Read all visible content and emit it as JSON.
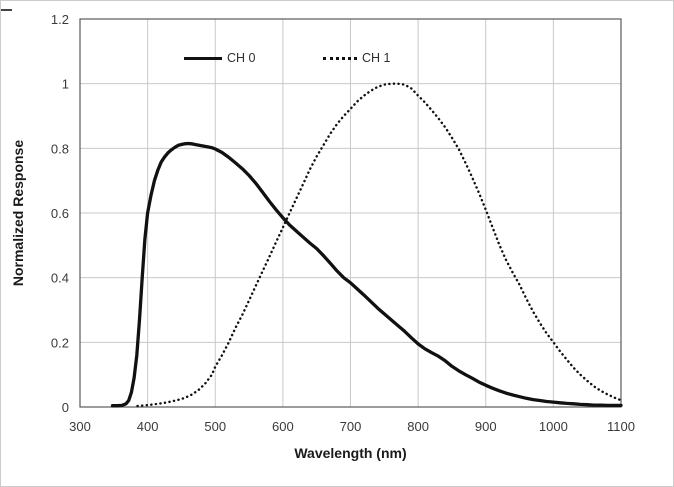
{
  "window": {
    "background": "#ffffff",
    "border_color": "#cccccc"
  },
  "chart_data": {
    "type": "line",
    "title": "",
    "xlabel": "Wavelength (nm)",
    "ylabel": "Normalized Response",
    "xlim": [
      300,
      1100
    ],
    "ylim": [
      0,
      1.2
    ],
    "xticks": [
      300,
      400,
      500,
      600,
      700,
      800,
      900,
      1000,
      1100
    ],
    "xtick_labels": [
      "300",
      "400",
      "500",
      "600",
      "700",
      "800",
      "900",
      "1000",
      "1100"
    ],
    "yticks": [
      0,
      0.2,
      0.4,
      0.6,
      0.8,
      1,
      1.2
    ],
    "ytick_labels": [
      "0",
      "0.2",
      "0.4",
      "0.6",
      "0.8",
      "1",
      "1.2"
    ],
    "grid": true,
    "legend": {
      "position": "top-inside",
      "entries": [
        "CH 0",
        "CH 1"
      ]
    },
    "colors": {
      "grid": "#c9c9c9",
      "frame": "#595959",
      "series": "#111111",
      "tick_text": "#3a3a3a",
      "title_text": "#1a1a1a"
    },
    "series": [
      {
        "name": "CH 0",
        "line_style": "solid",
        "points": [
          [
            348,
            0.004
          ],
          [
            355,
            0.004
          ],
          [
            362,
            0.005
          ],
          [
            368,
            0.01
          ],
          [
            372,
            0.02
          ],
          [
            376,
            0.045
          ],
          [
            380,
            0.09
          ],
          [
            384,
            0.16
          ],
          [
            388,
            0.27
          ],
          [
            392,
            0.4
          ],
          [
            396,
            0.52
          ],
          [
            400,
            0.6
          ],
          [
            405,
            0.655
          ],
          [
            410,
            0.7
          ],
          [
            415,
            0.732
          ],
          [
            420,
            0.757
          ],
          [
            425,
            0.773
          ],
          [
            430,
            0.786
          ],
          [
            435,
            0.795
          ],
          [
            440,
            0.803
          ],
          [
            445,
            0.809
          ],
          [
            450,
            0.812
          ],
          [
            455,
            0.814
          ],
          [
            460,
            0.815
          ],
          [
            465,
            0.814
          ],
          [
            470,
            0.812
          ],
          [
            475,
            0.81
          ],
          [
            480,
            0.808
          ],
          [
            485,
            0.806
          ],
          [
            490,
            0.804
          ],
          [
            495,
            0.802
          ],
          [
            500,
            0.798
          ],
          [
            510,
            0.787
          ],
          [
            520,
            0.772
          ],
          [
            530,
            0.755
          ],
          [
            540,
            0.737
          ],
          [
            550,
            0.716
          ],
          [
            560,
            0.692
          ],
          [
            570,
            0.664
          ],
          [
            580,
            0.636
          ],
          [
            590,
            0.61
          ],
          [
            600,
            0.585
          ],
          [
            610,
            0.563
          ],
          [
            620,
            0.544
          ],
          [
            630,
            0.525
          ],
          [
            640,
            0.507
          ],
          [
            650,
            0.49
          ],
          [
            660,
            0.468
          ],
          [
            670,
            0.445
          ],
          [
            680,
            0.421
          ],
          [
            690,
            0.4
          ],
          [
            700,
            0.384
          ],
          [
            710,
            0.365
          ],
          [
            720,
            0.346
          ],
          [
            730,
            0.326
          ],
          [
            740,
            0.306
          ],
          [
            750,
            0.288
          ],
          [
            760,
            0.27
          ],
          [
            770,
            0.252
          ],
          [
            780,
            0.234
          ],
          [
            790,
            0.214
          ],
          [
            800,
            0.195
          ],
          [
            810,
            0.18
          ],
          [
            820,
            0.168
          ],
          [
            830,
            0.157
          ],
          [
            840,
            0.143
          ],
          [
            850,
            0.126
          ],
          [
            860,
            0.112
          ],
          [
            870,
            0.1
          ],
          [
            880,
            0.089
          ],
          [
            890,
            0.077
          ],
          [
            900,
            0.067
          ],
          [
            910,
            0.058
          ],
          [
            920,
            0.05
          ],
          [
            930,
            0.043
          ],
          [
            940,
            0.037
          ],
          [
            950,
            0.032
          ],
          [
            960,
            0.027
          ],
          [
            970,
            0.023
          ],
          [
            980,
            0.02
          ],
          [
            990,
            0.017
          ],
          [
            1000,
            0.015
          ],
          [
            1010,
            0.013
          ],
          [
            1020,
            0.011
          ],
          [
            1030,
            0.01
          ],
          [
            1040,
            0.008
          ],
          [
            1050,
            0.007
          ],
          [
            1060,
            0.006
          ],
          [
            1070,
            0.006
          ],
          [
            1080,
            0.005
          ],
          [
            1090,
            0.005
          ],
          [
            1100,
            0.005
          ]
        ]
      },
      {
        "name": "CH 1",
        "line_style": "dotted",
        "points": [
          [
            385,
            0.003
          ],
          [
            395,
            0.005
          ],
          [
            405,
            0.007
          ],
          [
            415,
            0.01
          ],
          [
            425,
            0.013
          ],
          [
            435,
            0.017
          ],
          [
            445,
            0.022
          ],
          [
            455,
            0.028
          ],
          [
            465,
            0.038
          ],
          [
            475,
            0.052
          ],
          [
            485,
            0.072
          ],
          [
            495,
            0.1
          ],
          [
            500,
            0.125
          ],
          [
            510,
            0.16
          ],
          [
            520,
            0.2
          ],
          [
            530,
            0.245
          ],
          [
            540,
            0.285
          ],
          [
            550,
            0.33
          ],
          [
            560,
            0.375
          ],
          [
            570,
            0.42
          ],
          [
            580,
            0.465
          ],
          [
            590,
            0.51
          ],
          [
            600,
            0.555
          ],
          [
            610,
            0.6
          ],
          [
            620,
            0.645
          ],
          [
            630,
            0.69
          ],
          [
            640,
            0.735
          ],
          [
            650,
            0.775
          ],
          [
            660,
            0.81
          ],
          [
            670,
            0.845
          ],
          [
            680,
            0.875
          ],
          [
            690,
            0.9
          ],
          [
            700,
            0.922
          ],
          [
            710,
            0.945
          ],
          [
            720,
            0.963
          ],
          [
            730,
            0.978
          ],
          [
            740,
            0.99
          ],
          [
            750,
            0.997
          ],
          [
            760,
            1.0
          ],
          [
            770,
            1.0
          ],
          [
            780,
            0.997
          ],
          [
            790,
            0.985
          ],
          [
            800,
            0.963
          ],
          [
            810,
            0.942
          ],
          [
            820,
            0.918
          ],
          [
            830,
            0.893
          ],
          [
            840,
            0.865
          ],
          [
            850,
            0.833
          ],
          [
            860,
            0.798
          ],
          [
            870,
            0.755
          ],
          [
            880,
            0.71
          ],
          [
            890,
            0.662
          ],
          [
            900,
            0.61
          ],
          [
            910,
            0.556
          ],
          [
            920,
            0.502
          ],
          [
            930,
            0.455
          ],
          [
            940,
            0.415
          ],
          [
            950,
            0.378
          ],
          [
            960,
            0.335
          ],
          [
            970,
            0.295
          ],
          [
            980,
            0.26
          ],
          [
            990,
            0.228
          ],
          [
            1000,
            0.2
          ],
          [
            1010,
            0.172
          ],
          [
            1020,
            0.146
          ],
          [
            1030,
            0.121
          ],
          [
            1040,
            0.1
          ],
          [
            1050,
            0.081
          ],
          [
            1060,
            0.064
          ],
          [
            1070,
            0.05
          ],
          [
            1080,
            0.039
          ],
          [
            1090,
            0.029
          ],
          [
            1100,
            0.021
          ]
        ]
      }
    ]
  }
}
